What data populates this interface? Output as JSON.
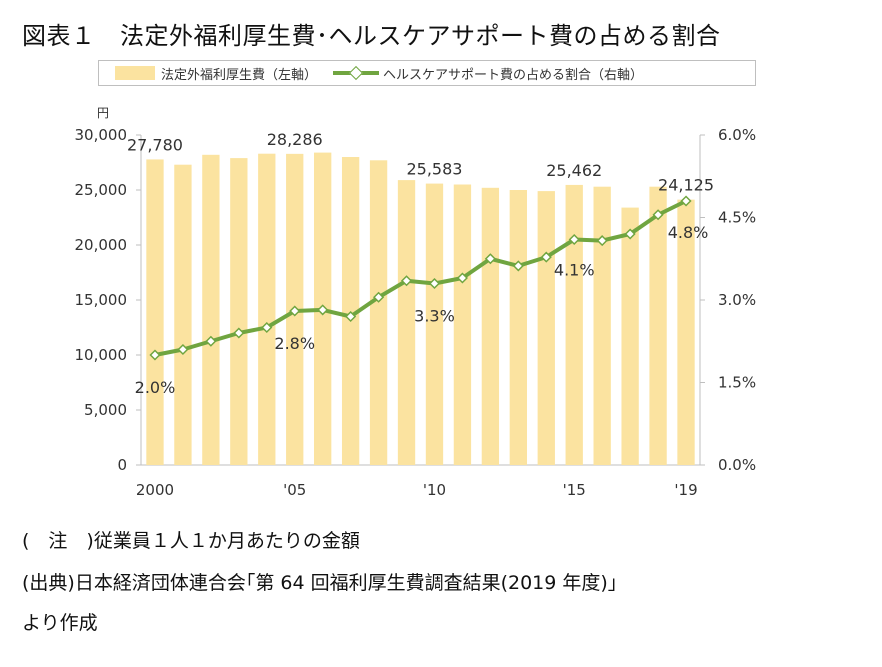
{
  "title": "図表１　法定外福利厚生費･ヘルスケアサポート費の占める割合",
  "legend": {
    "bar_label": "法定外福利厚生費（左軸）",
    "line_label": "ヘルスケアサポート費の占める割合（右軸）"
  },
  "colors": {
    "bar": "#fbe3a0",
    "line": "#70a540",
    "axis": "#bfbfbf",
    "text": "#333333"
  },
  "chart_data": {
    "type": "bar",
    "left_unit": "円",
    "left_ticks": [
      "30,000",
      "25,000",
      "20,000",
      "15,000",
      "10,000",
      "5,000",
      "0"
    ],
    "right_ticks": [
      "6.0%",
      "4.5%",
      "3.0%",
      "1.5%",
      "0.0%"
    ],
    "ylim_left": [
      0,
      30000
    ],
    "ylim_right": [
      0,
      6.0
    ],
    "x_tick_labels": [
      "2000",
      "'05",
      "'10",
      "'15",
      "'19"
    ],
    "years": [
      2000,
      2001,
      2002,
      2003,
      2004,
      2005,
      2006,
      2007,
      2008,
      2009,
      2010,
      2011,
      2012,
      2013,
      2014,
      2015,
      2016,
      2017,
      2018,
      2019
    ],
    "series": [
      {
        "name": "法定外福利厚生費（左軸）",
        "axis": "left",
        "values": [
          27780,
          27300,
          28200,
          27900,
          28300,
          28286,
          28400,
          28000,
          27700,
          25900,
          25583,
          25500,
          25200,
          25000,
          24900,
          25462,
          25300,
          23400,
          25300,
          24125
        ]
      },
      {
        "name": "ヘルスケアサポート費の占める割合（右軸）",
        "axis": "right",
        "values": [
          2.0,
          2.1,
          2.25,
          2.4,
          2.5,
          2.8,
          2.82,
          2.7,
          3.05,
          3.35,
          3.3,
          3.4,
          3.75,
          3.62,
          3.78,
          4.1,
          4.08,
          4.2,
          4.55,
          4.8
        ]
      }
    ],
    "bar_data_labels": [
      "27,780",
      "28,286",
      "25,583",
      "25,462",
      "24,125"
    ],
    "line_data_labels": [
      "2.0%",
      "2.8%",
      "3.3%",
      "4.1%",
      "4.8%"
    ]
  },
  "notes": {
    "line1": "(　注　)従業員１人１か月あたりの金額",
    "line2": "(出典)日本経済団体連合会｢第 64 回福利厚生費調査結果(2019 年度)｣",
    "line3": "より作成"
  }
}
